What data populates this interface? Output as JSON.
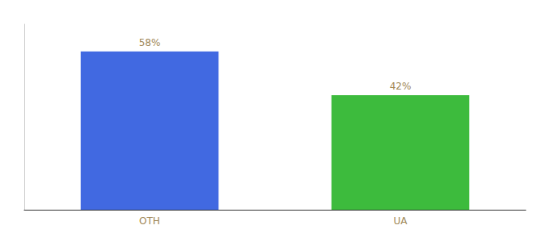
{
  "chart_data": {
    "type": "bar",
    "categories": [
      "OTH",
      "UA"
    ],
    "values": [
      58,
      42
    ],
    "colors": [
      "#4169e1",
      "#3dbb3d"
    ],
    "ylim": [
      0,
      68
    ],
    "data_labels": true,
    "value_labels": [
      "58%",
      "42%"
    ],
    "tick_labels": "x",
    "grid": false
  }
}
